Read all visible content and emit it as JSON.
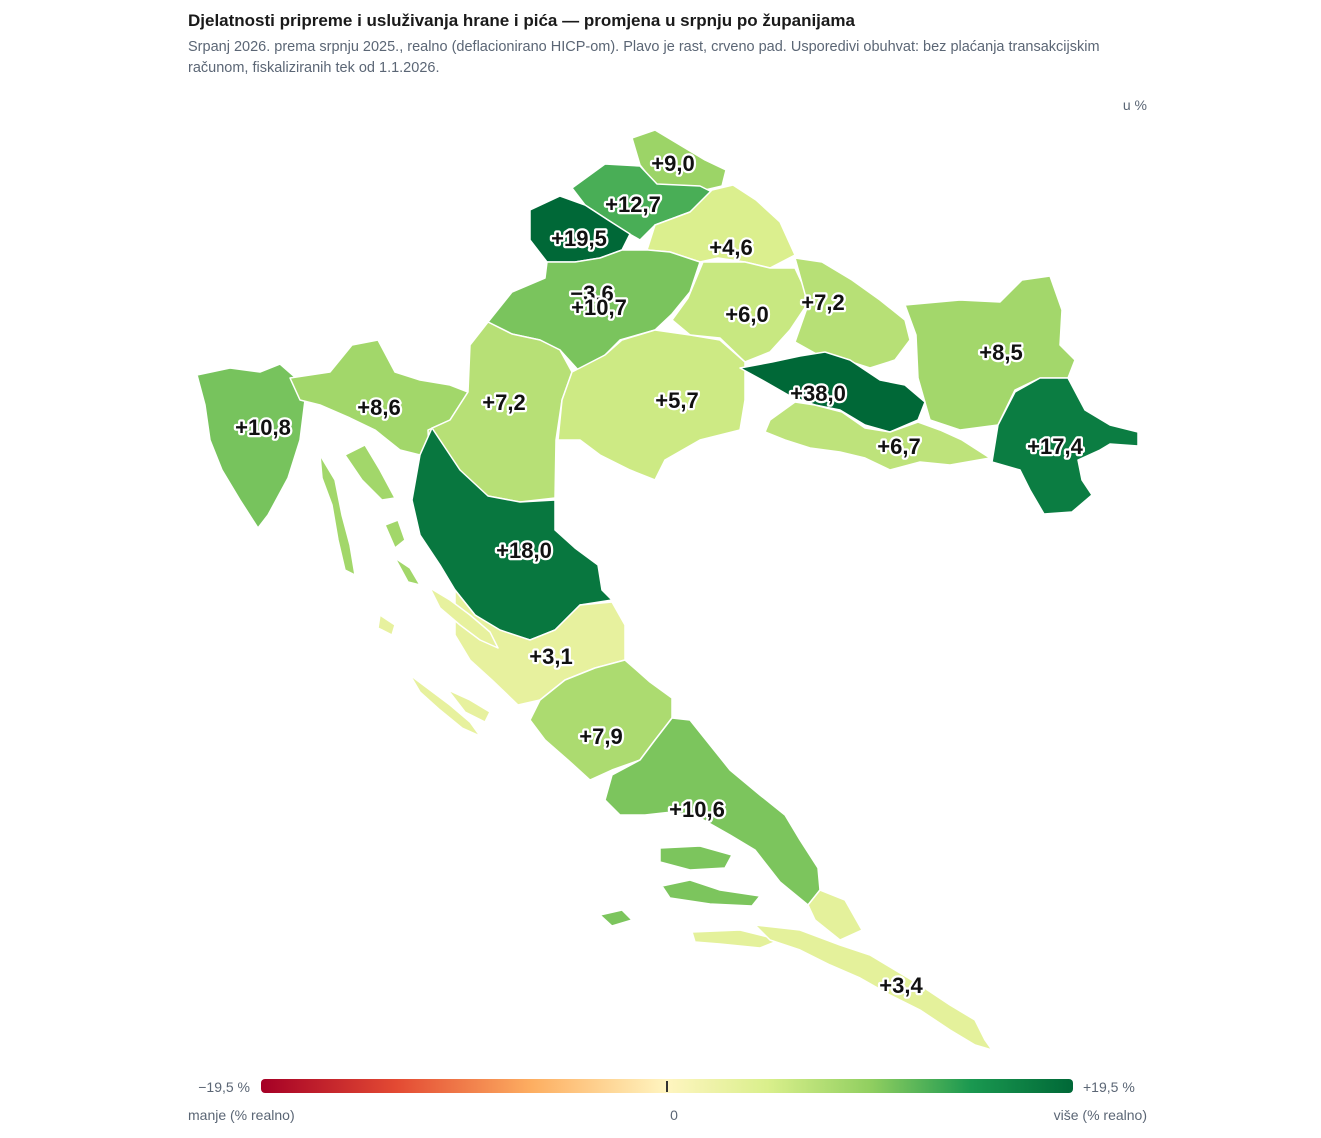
{
  "header": {
    "title": "Djelatnosti pripreme i usluživanja hrane i pića — promjena u srpnju po županijama",
    "subtitle": "Srpanj 2026. prema srpnju 2025., realno (deflacionirano HICP-om). Plavo je rast, crveno pad. Usporedivi obuhvat: bez plaćanja transakcijskim računom, fiskaliziranih tek od 1.1.2026.",
    "unit": "u %"
  },
  "legend": {
    "min_label": "−19,5 %",
    "max_label": "+19,5 %",
    "left_caption": "manje (% realno)",
    "mid_caption": "0",
    "right_caption": "više (% realno)",
    "domain": [
      -19.5,
      19.5
    ]
  },
  "chart_data": {
    "type": "choropleth",
    "colors": {
      "negative": "#a50026",
      "neutral": "#fff5c0",
      "positive": "#006837"
    },
    "regions": [
      {
        "label": "+9,0",
        "value": 9.0
      },
      {
        "label": "+12,7",
        "value": 12.7
      },
      {
        "label": "+19,5",
        "value": 19.5
      },
      {
        "label": "+4,6",
        "value": 4.6
      },
      {
        "label": "−3,6",
        "value": -3.6
      },
      {
        "label": "+10,7",
        "value": 10.7
      },
      {
        "label": "+6,0",
        "value": 6.0
      },
      {
        "label": "+7,2",
        "value": 7.2
      },
      {
        "label": "+8,5",
        "value": 8.5
      },
      {
        "label": "+10,8",
        "value": 10.8
      },
      {
        "label": "+8,6",
        "value": 8.6
      },
      {
        "label": "+7,2",
        "value": 7.2
      },
      {
        "label": "+5,7",
        "value": 5.7
      },
      {
        "label": "+38,0",
        "value": 38.0
      },
      {
        "label": "+6,7",
        "value": 6.7
      },
      {
        "label": "+17,4",
        "value": 17.4
      },
      {
        "label": "+18,0",
        "value": 18.0
      },
      {
        "label": "+3,1",
        "value": 3.1
      },
      {
        "label": "+7,9",
        "value": 7.9
      },
      {
        "label": "+10,6",
        "value": 10.6
      },
      {
        "label": "+3,4",
        "value": 3.4
      }
    ]
  }
}
